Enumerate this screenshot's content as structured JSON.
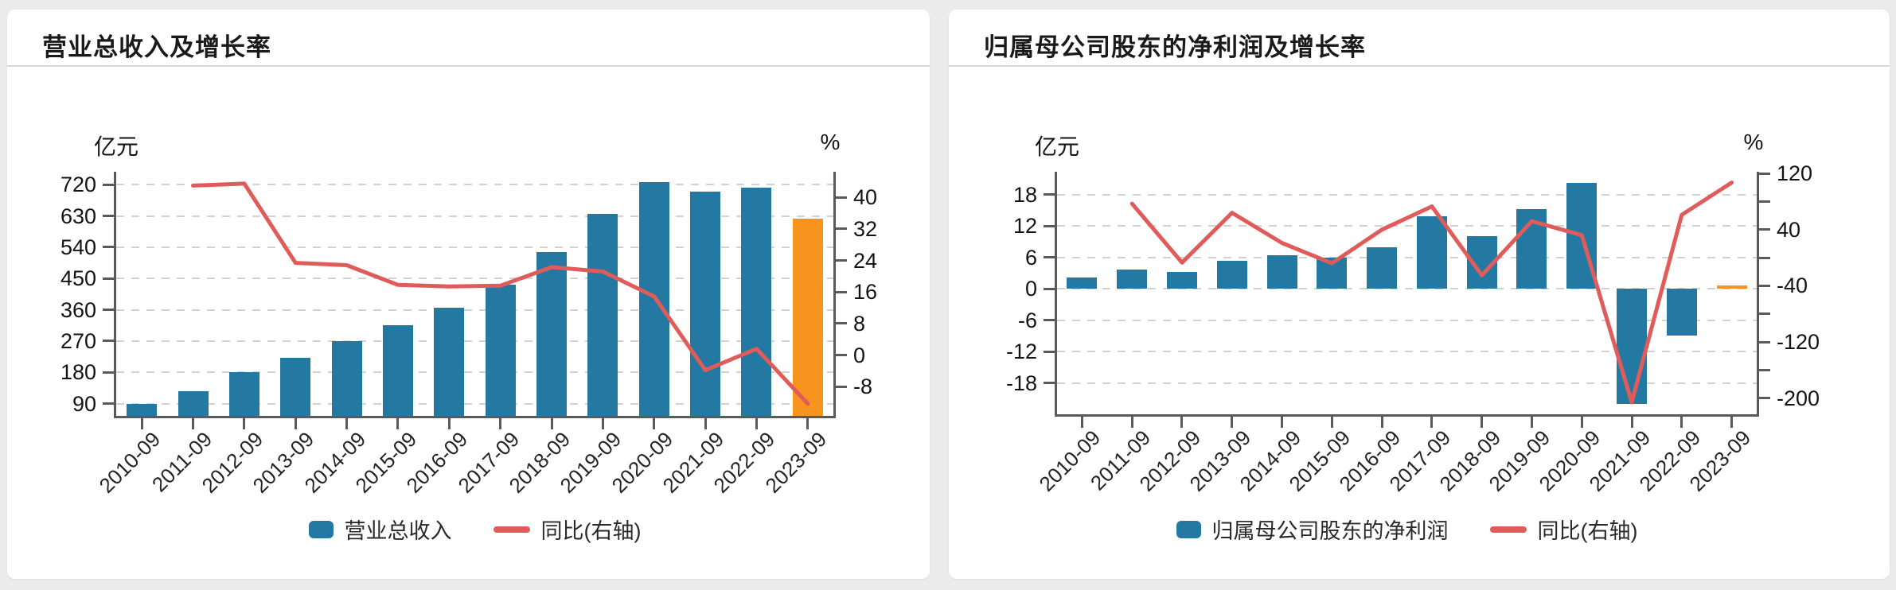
{
  "page": {
    "background": "#ebebeb",
    "card_background": "#ffffff"
  },
  "cards": [
    {
      "title": "营业总收入及增长率"
    },
    {
      "title": "归属母公司股东的净利润及增长率"
    }
  ],
  "chart_data": [
    {
      "type": "combo",
      "title": "营业总收入及增长率",
      "categories": [
        "2010-09",
        "2011-09",
        "2012-09",
        "2013-09",
        "2014-09",
        "2015-09",
        "2016-09",
        "2017-09",
        "2018-09",
        "2019-09",
        "2020-09",
        "2021-09",
        "2022-09",
        "2023-09"
      ],
      "series": [
        {
          "name": "营业总收入",
          "type": "bar",
          "axis": "left",
          "values": [
            89,
            126,
            180,
            221,
            269,
            315,
            367,
            433,
            526,
            636,
            727,
            700,
            711,
            622
          ],
          "color": "#2379a2",
          "last_value_color": "#f7941e"
        },
        {
          "name": "同比(右轴)",
          "type": "line",
          "axis": "right",
          "values": [
            null,
            43,
            43.5,
            23.4,
            22.8,
            17.8,
            17.4,
            17.6,
            22.3,
            21.2,
            14.9,
            -3.8,
            1.6,
            -12.3
          ],
          "color": "#e05c5a"
        }
      ],
      "left_axis": {
        "unit": "亿元",
        "ticks": [
          720,
          630,
          540,
          450,
          360,
          270,
          180,
          90
        ],
        "tick_marks": [
          720,
          630,
          540,
          450,
          360,
          270,
          180,
          90
        ],
        "min": 55,
        "max": 757
      },
      "right_axis": {
        "unit": "%",
        "ticks": [
          40,
          32,
          24,
          16,
          8,
          0,
          -8
        ],
        "tick_marks": [
          40,
          32,
          24,
          16,
          8,
          0,
          -8
        ],
        "min": -15.4,
        "max": 46.5
      },
      "legend": [
        "营业总收入",
        "同比(右轴)"
      ],
      "grid": "dashed-horizontal"
    },
    {
      "type": "combo",
      "title": "归属母公司股东的净利润及增长率",
      "categories": [
        "2010-09",
        "2011-09",
        "2012-09",
        "2013-09",
        "2014-09",
        "2015-09",
        "2016-09",
        "2017-09",
        "2018-09",
        "2019-09",
        "2020-09",
        "2021-09",
        "2022-09",
        "2023-09"
      ],
      "series": [
        {
          "name": "归属母公司股东的净利润",
          "type": "bar",
          "axis": "left",
          "values": [
            2.1,
            3.7,
            3.2,
            5.4,
            6.5,
            5.9,
            8.0,
            13.9,
            10.1,
            15.3,
            20.2,
            -22,
            -8.9,
            0.3
          ],
          "color": "#2379a2",
          "last_value_color": "#f7941e"
        },
        {
          "name": "同比(右轴)",
          "type": "line",
          "axis": "right",
          "values": [
            null,
            77,
            -7,
            64,
            21,
            -8,
            40,
            73,
            -25,
            52,
            32,
            -206,
            61,
            107
          ],
          "color": "#e05c5a"
        }
      ],
      "left_axis": {
        "unit": "亿元",
        "ticks": [
          18,
          12,
          6,
          0,
          -6,
          -12,
          -18
        ],
        "tick_marks": [
          18,
          12,
          6,
          0,
          -6,
          -12,
          -18
        ],
        "min": -24,
        "max": 22.4
      },
      "right_axis": {
        "unit": "%",
        "ticks": [
          120,
          40,
          -40,
          -120,
          -200
        ],
        "tick_marks": [
          120,
          80,
          40,
          0,
          -40,
          -80,
          -120,
          -160,
          -200
        ],
        "min": -223,
        "max": 122.4
      },
      "legend": [
        "归属母公司股东的净利润",
        "同比(右轴)"
      ],
      "grid": "dashed-horizontal"
    }
  ]
}
